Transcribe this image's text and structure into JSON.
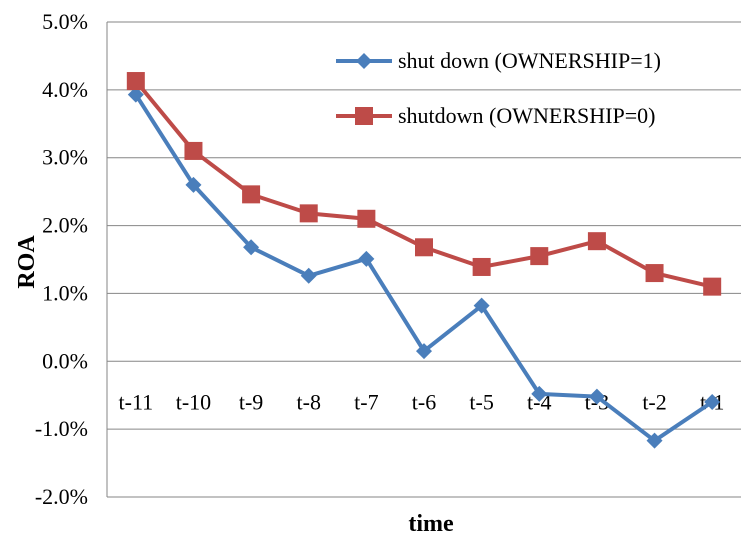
{
  "chart_data": {
    "type": "line",
    "title": "",
    "xlabel": "time",
    "ylabel": "ROA",
    "ylim": [
      -0.02,
      0.05
    ],
    "y_ticks": [
      "-2.0%",
      "-1.0%",
      "0.0%",
      "1.0%",
      "2.0%",
      "3.0%",
      "4.0%",
      "5.0%"
    ],
    "categories": [
      "t-11",
      "t-10",
      "t-9",
      "t-8",
      "t-7",
      "t-6",
      "t-5",
      "t-4",
      "t-3",
      "t-2",
      "t-1"
    ],
    "grid": "horizontal",
    "legend_position": "top-right",
    "series": [
      {
        "name": "shut down (OWNERSHIP=1)",
        "marker": "diamond",
        "color": "#4a7ebb",
        "values": [
          0.0393,
          0.026,
          0.0168,
          0.0126,
          0.0151,
          0.0015,
          0.0082,
          -0.0048,
          -0.0052,
          -0.0117,
          -0.006
        ]
      },
      {
        "name": "shutdown (OWNERSHIP=0)",
        "marker": "square",
        "color": "#be4b48",
        "values": [
          0.0413,
          0.031,
          0.0246,
          0.0218,
          0.021,
          0.0168,
          0.0139,
          0.0155,
          0.0177,
          0.013,
          0.011
        ]
      }
    ]
  }
}
